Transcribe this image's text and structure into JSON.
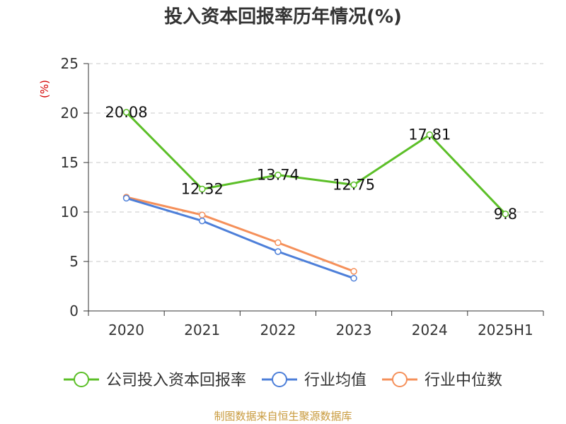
{
  "chart_data": {
    "type": "line",
    "title": "投入资本回报率历年情况(%)",
    "ylabel": "(%)",
    "xlabel": "",
    "categories": [
      "2020",
      "2021",
      "2022",
      "2023",
      "2024",
      "2025H1"
    ],
    "ylim": [
      0,
      25
    ],
    "yticks": [
      0,
      5,
      10,
      15,
      20,
      25
    ],
    "grid": true,
    "legend_position": "bottom",
    "series": [
      {
        "name": "公司投入资本回报率",
        "color": "#5cbf28",
        "values": [
          20.08,
          12.32,
          13.74,
          12.75,
          17.81,
          9.8
        ],
        "labels": [
          "20.08",
          "12.32",
          "13.74",
          "12.75",
          "17.81",
          "9.8"
        ]
      },
      {
        "name": "行业均值",
        "color": "#4d7fd9",
        "values": [
          11.4,
          9.1,
          6.0,
          3.3,
          null,
          null
        ]
      },
      {
        "name": "行业中位数",
        "color": "#f5905a",
        "values": [
          11.5,
          9.7,
          6.9,
          4.0,
          null,
          null
        ]
      }
    ]
  },
  "source": "制图数据来自恒生聚源数据库"
}
